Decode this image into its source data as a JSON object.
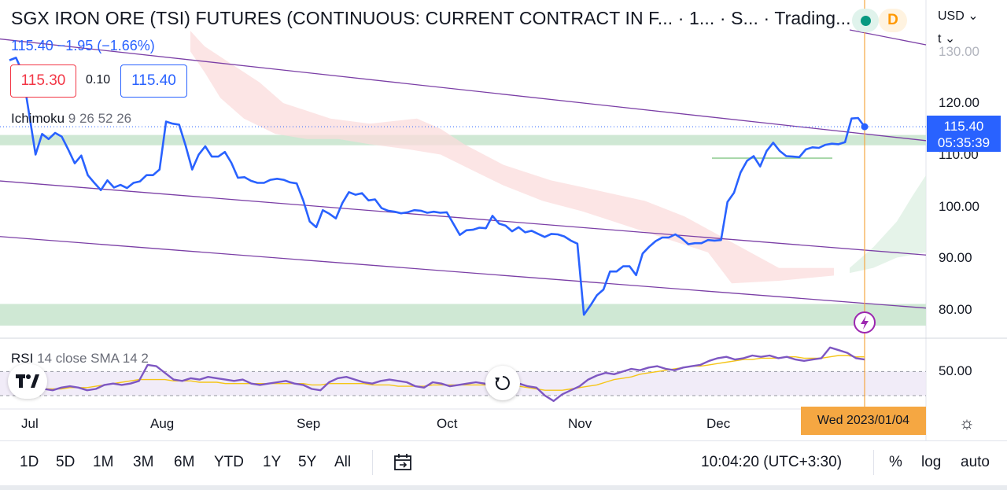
{
  "header": {
    "title": "SGX IRON ORE (TSI) FUTURES (CONTINUOUS: CURRENT CONTRACT IN F...  · 1...  · S...  · Trading...",
    "last_change": "115.40  −1.95 (−1.66%)",
    "bid": "115.30",
    "spread": "0.10",
    "ask": "115.40",
    "currency": "USD",
    "unit": "t"
  },
  "indicators": {
    "ichimoku_name": "Ichimoku",
    "ichimoku_params": "9 26 52 26",
    "rsi_name": "RSI",
    "rsi_params": "14 close SMA 14 2"
  },
  "price_axis": [
    "130.00",
    "120.00",
    "110.00",
    "100.00",
    "90.00",
    "80.00"
  ],
  "rsi_axis": [
    "50.00"
  ],
  "last_price_tag": {
    "price": "115.40",
    "countdown": "05:35:39"
  },
  "time_axis": [
    "Jul",
    "Aug",
    "Sep",
    "Oct",
    "Nov",
    "Dec"
  ],
  "crosshair_date": "Wed 2023/01/04",
  "ranges": [
    "1D",
    "5D",
    "1M",
    "3M",
    "6M",
    "YTD",
    "1Y",
    "5Y",
    "All"
  ],
  "clock": "10:04:20 (UTC+3:30)",
  "scale_options": [
    "%",
    "log",
    "auto"
  ],
  "icons": {
    "tradingview_logo": "tradingview-logo-icon",
    "reset_chart": "reset-icon",
    "settings": "gear-icon",
    "compare": "calendar-goto-icon",
    "alert": "lightning-icon",
    "delayed": "D"
  },
  "colors": {
    "price_line": "#2962ff",
    "channel": "#7b3fa6",
    "kumo_bear": "#fbdcdc",
    "kumo_bull": "#dff0e3",
    "zone": "#cfe8d4",
    "rsi": "#7e57c2",
    "rsi_ma": "#f5c518",
    "crosshair": "#f5a742"
  },
  "chart_data": {
    "type": "line",
    "x_labels": [
      "Jul",
      "Aug",
      "Sep",
      "Oct",
      "Nov",
      "Dec"
    ],
    "ylim": [
      72,
      134
    ],
    "price": [
      128.3,
      128.8,
      126,
      118,
      110,
      114,
      113,
      114.2,
      113.5,
      111,
      108.3,
      109.8,
      106,
      104.5,
      103.1,
      105,
      103.6,
      104.1,
      103.5,
      104.5,
      104.8,
      106,
      106,
      107.1,
      116.4,
      116,
      115.8,
      111.7,
      107.1,
      110,
      111.6,
      109.6,
      109.6,
      110.5,
      108.4,
      105.5,
      105.6,
      104.9,
      104.5,
      104.5,
      105.1,
      105.3,
      105.1,
      104.6,
      104.4,
      101.1,
      97,
      95.9,
      99.2,
      98.5,
      97.6,
      100.6,
      102.7,
      102.2,
      102.5,
      101.1,
      101.3,
      99.6,
      99.1,
      98.9,
      98.6,
      98.8,
      99.2,
      99.1,
      98.7,
      98.9,
      98.7,
      98.8,
      96.6,
      94.4,
      95.3,
      95.4,
      95.8,
      95.7,
      98.1,
      96.6,
      96.2,
      95.1,
      95.9,
      94.9,
      95.2,
      94.6,
      94,
      94.6,
      94.5,
      94.1,
      93.3,
      92.7,
      78.9,
      80.7,
      82.7,
      83.8,
      87.3,
      87.3,
      88.3,
      88.3,
      86.6,
      90.8,
      92.1,
      93.2,
      93.9,
      93.9,
      94.5,
      93.7,
      92.6,
      92.8,
      92.8,
      93.4,
      93.3,
      93.4,
      100.8,
      102.6,
      106.5,
      108.8,
      109.7,
      107.7,
      110.7,
      112.3,
      110.7,
      109.7,
      109.6,
      109.5,
      111,
      111.4,
      111.3,
      111.9,
      112.1,
      112,
      112.4,
      117,
      117.1,
      115.4
    ],
    "rsi": [
      48,
      49,
      45,
      46,
      45,
      44,
      46,
      47,
      46,
      44,
      45,
      48,
      49,
      48,
      49,
      51,
      63,
      62,
      57,
      52,
      51,
      53,
      52,
      54,
      53,
      52,
      51,
      52,
      49,
      48,
      49,
      50,
      51,
      49,
      48,
      45,
      44,
      50,
      53,
      54,
      52,
      50,
      49,
      51,
      52,
      51,
      50,
      47,
      46,
      50,
      49,
      47,
      48,
      49,
      50,
      49,
      47,
      46,
      48,
      49,
      47,
      46,
      40,
      36,
      41,
      44,
      47,
      52,
      55,
      57,
      56,
      58,
      60,
      59,
      61,
      62,
      60,
      59,
      61,
      62,
      63,
      66,
      68,
      69,
      67,
      68,
      70,
      69,
      70,
      68,
      69,
      67,
      66,
      67,
      68,
      76,
      74,
      72,
      68,
      67
    ],
    "rsi_ma": [
      47,
      48,
      47,
      46,
      45,
      45,
      45,
      46,
      46,
      46,
      47,
      48,
      49,
      50,
      51,
      52,
      52,
      52,
      52,
      51,
      51,
      51,
      50,
      50,
      50,
      49,
      49,
      49,
      49,
      49,
      49,
      49,
      49,
      49,
      49,
      48,
      48,
      49,
      49,
      49,
      49,
      49,
      48,
      48,
      48,
      47,
      47,
      47,
      47,
      48,
      48,
      48,
      48,
      48,
      48,
      48,
      48,
      47,
      47,
      47,
      46,
      45,
      44,
      44,
      44,
      45,
      46,
      47,
      48,
      50,
      52,
      53,
      54,
      56,
      57,
      58,
      59,
      60,
      61,
      62,
      62,
      63,
      64,
      65,
      66,
      67,
      67,
      68,
      68,
      68,
      69,
      69,
      68,
      68,
      68,
      69,
      70,
      70,
      69,
      69
    ],
    "rsi_range": [
      30,
      80
    ],
    "rsi_band": [
      40,
      58
    ]
  }
}
